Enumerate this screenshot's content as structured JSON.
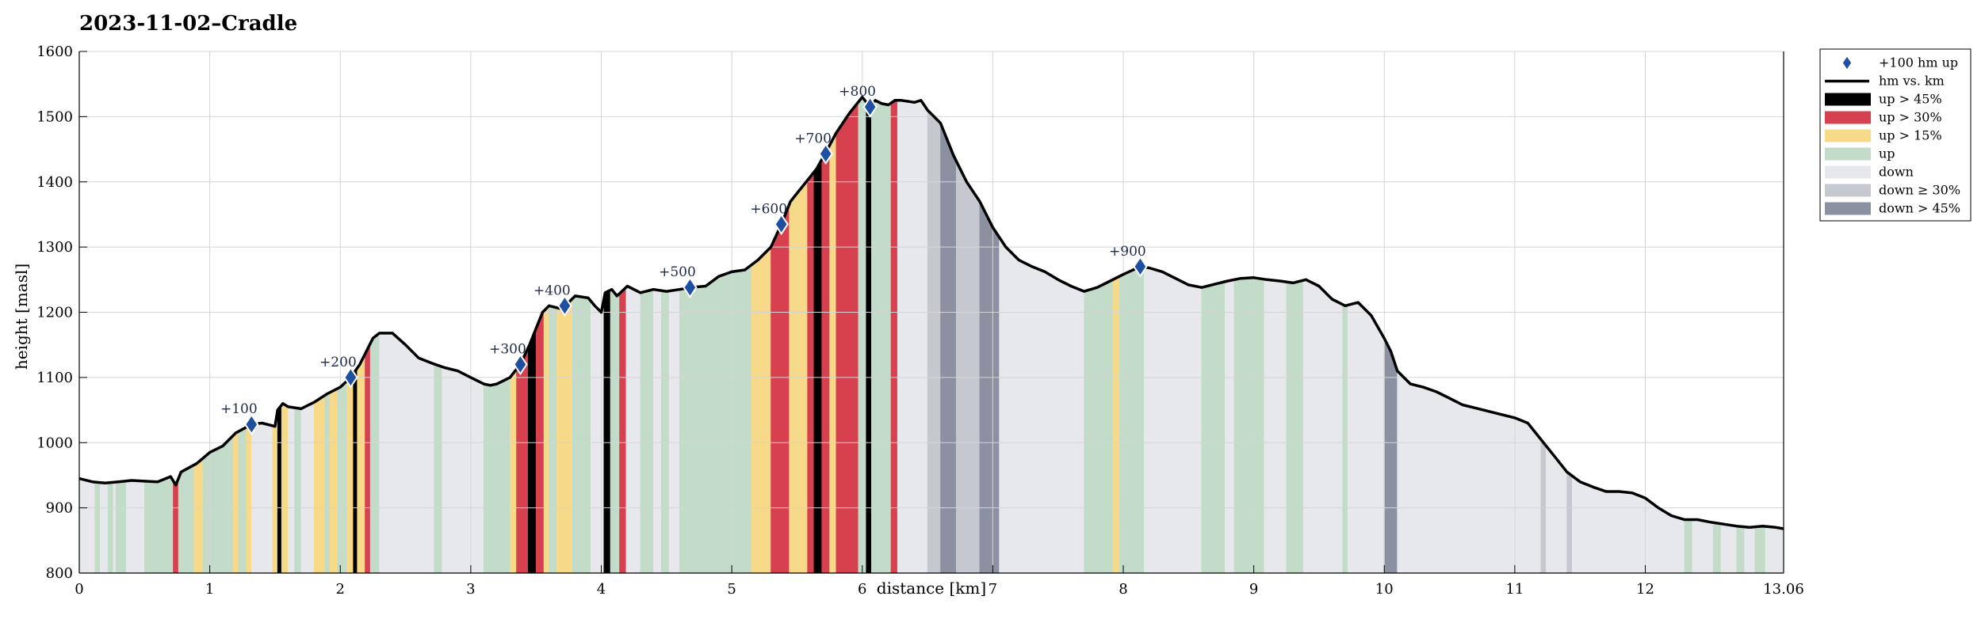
{
  "chart_data": {
    "type": "area",
    "title": "2023-11-02–Cradle",
    "xlabel": "distance [km]",
    "ylabel": "height [masl]",
    "xlim": [
      0,
      13.06
    ],
    "ylim": [
      800,
      1600
    ],
    "x_ticks": [
      0,
      1,
      2,
      3,
      4,
      5,
      6,
      7,
      8,
      9,
      10,
      11,
      12,
      13.06
    ],
    "x_tick_labels": [
      "0",
      "1",
      "2",
      "3",
      "4",
      "5",
      "6",
      "7",
      "8",
      "9",
      "10",
      "11",
      "12",
      "13.06"
    ],
    "y_ticks": [
      800,
      900,
      1000,
      1100,
      1200,
      1300,
      1400,
      1500,
      1600
    ],
    "y_tick_labels": [
      "800",
      "900",
      "1000",
      "1100",
      "1200",
      "1300",
      "1400",
      "1500",
      "1600"
    ],
    "grid": true,
    "legend_position": "outside-top-right",
    "legend": [
      {
        "label": "+100 hm up",
        "kind": "marker",
        "color": "#1f4fa0"
      },
      {
        "label": "hm vs. km",
        "kind": "line",
        "color": "#000000"
      },
      {
        "label": "up > 45%",
        "kind": "patch",
        "color": "#000000"
      },
      {
        "label": "up > 30%",
        "kind": "patch",
        "color": "#d6404f"
      },
      {
        "label": "up > 15%",
        "kind": "patch",
        "color": "#f7d98a"
      },
      {
        "label": "up",
        "kind": "patch",
        "color": "#c3dcc9"
      },
      {
        "label": "down",
        "kind": "patch",
        "color": "#e7e8ec"
      },
      {
        "label": "down ≥ 30%",
        "kind": "patch",
        "color": "#c6c8cf"
      },
      {
        "label": "down > 45%",
        "kind": "patch",
        "color": "#8b91a0"
      }
    ],
    "profile": {
      "x": [
        0,
        0.1,
        0.2,
        0.3,
        0.4,
        0.5,
        0.6,
        0.7,
        0.74,
        0.78,
        0.9,
        1.0,
        1.1,
        1.2,
        1.32,
        1.4,
        1.5,
        1.52,
        1.56,
        1.6,
        1.7,
        1.8,
        1.9,
        2.0,
        2.08,
        2.15,
        2.2,
        2.25,
        2.3,
        2.4,
        2.5,
        2.6,
        2.7,
        2.8,
        2.9,
        3.0,
        3.1,
        3.15,
        3.2,
        3.3,
        3.38,
        3.45,
        3.55,
        3.6,
        3.7,
        3.75,
        3.8,
        3.9,
        3.95,
        4.0,
        4.03,
        4.08,
        4.12,
        4.2,
        4.3,
        4.4,
        4.5,
        4.6,
        4.68,
        4.8,
        4.9,
        5.0,
        5.1,
        5.2,
        5.3,
        5.38,
        5.45,
        5.55,
        5.65,
        5.72,
        5.8,
        5.9,
        6.0,
        6.06,
        6.1,
        6.15,
        6.2,
        6.25,
        6.3,
        6.4,
        6.45,
        6.5,
        6.6,
        6.7,
        6.8,
        6.9,
        7.0,
        7.1,
        7.2,
        7.3,
        7.4,
        7.5,
        7.6,
        7.7,
        7.8,
        7.9,
        8.0,
        8.13,
        8.2,
        8.3,
        8.4,
        8.5,
        8.6,
        8.7,
        8.8,
        8.9,
        9.0,
        9.1,
        9.2,
        9.3,
        9.4,
        9.5,
        9.6,
        9.7,
        9.8,
        9.9,
        10.0,
        10.05,
        10.1,
        10.2,
        10.3,
        10.4,
        10.5,
        10.6,
        10.7,
        10.8,
        10.9,
        11.0,
        11.1,
        11.2,
        11.3,
        11.4,
        11.5,
        11.6,
        11.7,
        11.8,
        11.9,
        12.0,
        12.1,
        12.2,
        12.3,
        12.4,
        12.5,
        12.6,
        12.7,
        12.8,
        12.9,
        13.0,
        13.06
      ],
      "y": [
        945,
        940,
        938,
        940,
        942,
        941,
        940,
        948,
        935,
        955,
        968,
        985,
        995,
        1015,
        1028,
        1030,
        1025,
        1050,
        1060,
        1055,
        1052,
        1062,
        1075,
        1085,
        1100,
        1120,
        1140,
        1160,
        1168,
        1168,
        1150,
        1130,
        1122,
        1115,
        1110,
        1100,
        1090,
        1088,
        1090,
        1100,
        1120,
        1150,
        1200,
        1210,
        1205,
        1215,
        1225,
        1222,
        1210,
        1200,
        1230,
        1235,
        1225,
        1240,
        1230,
        1235,
        1232,
        1235,
        1238,
        1240,
        1255,
        1262,
        1265,
        1280,
        1300,
        1335,
        1370,
        1395,
        1420,
        1445,
        1475,
        1505,
        1530,
        1515,
        1525,
        1520,
        1518,
        1525,
        1525,
        1522,
        1525,
        1510,
        1490,
        1440,
        1400,
        1370,
        1330,
        1300,
        1280,
        1270,
        1262,
        1250,
        1240,
        1232,
        1238,
        1248,
        1258,
        1270,
        1268,
        1262,
        1252,
        1242,
        1238,
        1243,
        1248,
        1252,
        1253,
        1250,
        1248,
        1245,
        1250,
        1240,
        1220,
        1210,
        1215,
        1195,
        1160,
        1140,
        1110,
        1090,
        1085,
        1078,
        1068,
        1058,
        1053,
        1048,
        1043,
        1038,
        1030,
        1005,
        980,
        955,
        940,
        932,
        925,
        925,
        923,
        915,
        900,
        888,
        882,
        882,
        878,
        875,
        872,
        870,
        872,
        870,
        868
      ]
    },
    "segments": [
      {
        "x0": 0.0,
        "x1": 0.12,
        "cat": "down"
      },
      {
        "x0": 0.12,
        "x1": 0.16,
        "cat": "up"
      },
      {
        "x0": 0.16,
        "x1": 0.22,
        "cat": "down"
      },
      {
        "x0": 0.22,
        "x1": 0.26,
        "cat": "up"
      },
      {
        "x0": 0.26,
        "x1": 0.28,
        "cat": "down"
      },
      {
        "x0": 0.28,
        "x1": 0.36,
        "cat": "up"
      },
      {
        "x0": 0.36,
        "x1": 0.5,
        "cat": "down"
      },
      {
        "x0": 0.5,
        "x1": 0.72,
        "cat": "up"
      },
      {
        "x0": 0.72,
        "x1": 0.76,
        "cat": "up30"
      },
      {
        "x0": 0.76,
        "x1": 0.88,
        "cat": "up"
      },
      {
        "x0": 0.88,
        "x1": 0.95,
        "cat": "up15"
      },
      {
        "x0": 0.95,
        "x1": 1.18,
        "cat": "up"
      },
      {
        "x0": 1.18,
        "x1": 1.22,
        "cat": "up15"
      },
      {
        "x0": 1.22,
        "x1": 1.28,
        "cat": "up"
      },
      {
        "x0": 1.28,
        "x1": 1.32,
        "cat": "up15"
      },
      {
        "x0": 1.32,
        "x1": 1.48,
        "cat": "down"
      },
      {
        "x0": 1.48,
        "x1": 1.52,
        "cat": "up15"
      },
      {
        "x0": 1.52,
        "x1": 1.55,
        "cat": "up45"
      },
      {
        "x0": 1.55,
        "x1": 1.6,
        "cat": "up15"
      },
      {
        "x0": 1.6,
        "x1": 1.65,
        "cat": "down"
      },
      {
        "x0": 1.65,
        "x1": 1.7,
        "cat": "up"
      },
      {
        "x0": 1.7,
        "x1": 1.8,
        "cat": "down"
      },
      {
        "x0": 1.8,
        "x1": 1.88,
        "cat": "up15"
      },
      {
        "x0": 1.88,
        "x1": 1.92,
        "cat": "up"
      },
      {
        "x0": 1.92,
        "x1": 1.98,
        "cat": "up15"
      },
      {
        "x0": 1.98,
        "x1": 2.05,
        "cat": "up"
      },
      {
        "x0": 2.05,
        "x1": 2.1,
        "cat": "up15"
      },
      {
        "x0": 2.1,
        "x1": 2.13,
        "cat": "up45"
      },
      {
        "x0": 2.13,
        "x1": 2.19,
        "cat": "up15"
      },
      {
        "x0": 2.19,
        "x1": 2.23,
        "cat": "up30"
      },
      {
        "x0": 2.23,
        "x1": 2.3,
        "cat": "up"
      },
      {
        "x0": 2.3,
        "x1": 2.72,
        "cat": "down"
      },
      {
        "x0": 2.72,
        "x1": 2.78,
        "cat": "up"
      },
      {
        "x0": 2.78,
        "x1": 3.1,
        "cat": "down"
      },
      {
        "x0": 3.1,
        "x1": 3.3,
        "cat": "up"
      },
      {
        "x0": 3.3,
        "x1": 3.35,
        "cat": "up15"
      },
      {
        "x0": 3.35,
        "x1": 3.44,
        "cat": "up30"
      },
      {
        "x0": 3.44,
        "x1": 3.5,
        "cat": "up45"
      },
      {
        "x0": 3.5,
        "x1": 3.56,
        "cat": "up30"
      },
      {
        "x0": 3.56,
        "x1": 3.6,
        "cat": "up15"
      },
      {
        "x0": 3.6,
        "x1": 3.66,
        "cat": "up"
      },
      {
        "x0": 3.66,
        "x1": 3.78,
        "cat": "up15"
      },
      {
        "x0": 3.78,
        "x1": 3.92,
        "cat": "up"
      },
      {
        "x0": 3.92,
        "x1": 4.02,
        "cat": "down"
      },
      {
        "x0": 4.02,
        "x1": 4.07,
        "cat": "up45"
      },
      {
        "x0": 4.07,
        "x1": 4.14,
        "cat": "up"
      },
      {
        "x0": 4.14,
        "x1": 4.19,
        "cat": "up30"
      },
      {
        "x0": 4.19,
        "x1": 4.3,
        "cat": "down"
      },
      {
        "x0": 4.3,
        "x1": 4.4,
        "cat": "up"
      },
      {
        "x0": 4.4,
        "x1": 4.46,
        "cat": "down"
      },
      {
        "x0": 4.46,
        "x1": 4.52,
        "cat": "up"
      },
      {
        "x0": 4.52,
        "x1": 4.6,
        "cat": "down"
      },
      {
        "x0": 4.6,
        "x1": 5.15,
        "cat": "up"
      },
      {
        "x0": 5.15,
        "x1": 5.3,
        "cat": "up15"
      },
      {
        "x0": 5.3,
        "x1": 5.44,
        "cat": "up30"
      },
      {
        "x0": 5.44,
        "x1": 5.58,
        "cat": "up15"
      },
      {
        "x0": 5.58,
        "x1": 5.63,
        "cat": "up30"
      },
      {
        "x0": 5.63,
        "x1": 5.69,
        "cat": "up45"
      },
      {
        "x0": 5.69,
        "x1": 5.75,
        "cat": "up30"
      },
      {
        "x0": 5.75,
        "x1": 5.8,
        "cat": "up15"
      },
      {
        "x0": 5.8,
        "x1": 5.9,
        "cat": "up30"
      },
      {
        "x0": 5.9,
        "x1": 5.97,
        "cat": "up30"
      },
      {
        "x0": 5.97,
        "x1": 6.03,
        "cat": "up"
      },
      {
        "x0": 6.03,
        "x1": 6.07,
        "cat": "up45"
      },
      {
        "x0": 6.07,
        "x1": 6.22,
        "cat": "up"
      },
      {
        "x0": 6.22,
        "x1": 6.27,
        "cat": "up30"
      },
      {
        "x0": 6.27,
        "x1": 6.5,
        "cat": "down"
      },
      {
        "x0": 6.5,
        "x1": 6.6,
        "cat": "down30"
      },
      {
        "x0": 6.6,
        "x1": 6.72,
        "cat": "down45"
      },
      {
        "x0": 6.72,
        "x1": 6.9,
        "cat": "down30"
      },
      {
        "x0": 6.9,
        "x1": 7.05,
        "cat": "down45"
      },
      {
        "x0": 7.05,
        "x1": 7.7,
        "cat": "down"
      },
      {
        "x0": 7.7,
        "x1": 7.92,
        "cat": "up"
      },
      {
        "x0": 7.92,
        "x1": 7.97,
        "cat": "up15"
      },
      {
        "x0": 7.97,
        "x1": 8.16,
        "cat": "up"
      },
      {
        "x0": 8.16,
        "x1": 8.6,
        "cat": "down"
      },
      {
        "x0": 8.6,
        "x1": 8.78,
        "cat": "up"
      },
      {
        "x0": 8.78,
        "x1": 8.85,
        "cat": "down"
      },
      {
        "x0": 8.85,
        "x1": 9.08,
        "cat": "up"
      },
      {
        "x0": 9.08,
        "x1": 9.25,
        "cat": "down"
      },
      {
        "x0": 9.25,
        "x1": 9.38,
        "cat": "up"
      },
      {
        "x0": 9.38,
        "x1": 9.68,
        "cat": "down"
      },
      {
        "x0": 9.68,
        "x1": 9.72,
        "cat": "up"
      },
      {
        "x0": 9.72,
        "x1": 10.0,
        "cat": "down"
      },
      {
        "x0": 10.0,
        "x1": 10.1,
        "cat": "down45"
      },
      {
        "x0": 10.1,
        "x1": 11.2,
        "cat": "down"
      },
      {
        "x0": 11.2,
        "x1": 11.24,
        "cat": "down30"
      },
      {
        "x0": 11.24,
        "x1": 11.4,
        "cat": "down"
      },
      {
        "x0": 11.4,
        "x1": 11.44,
        "cat": "down30"
      },
      {
        "x0": 11.44,
        "x1": 12.3,
        "cat": "down"
      },
      {
        "x0": 12.3,
        "x1": 12.36,
        "cat": "up"
      },
      {
        "x0": 12.36,
        "x1": 12.52,
        "cat": "down"
      },
      {
        "x0": 12.52,
        "x1": 12.58,
        "cat": "up"
      },
      {
        "x0": 12.58,
        "x1": 12.7,
        "cat": "down"
      },
      {
        "x0": 12.7,
        "x1": 12.76,
        "cat": "up"
      },
      {
        "x0": 12.76,
        "x1": 12.84,
        "cat": "down"
      },
      {
        "x0": 12.84,
        "x1": 12.92,
        "cat": "up"
      },
      {
        "x0": 12.92,
        "x1": 13.06,
        "cat": "down"
      }
    ],
    "markers": [
      {
        "x": 1.32,
        "y": 1028,
        "label": "+100"
      },
      {
        "x": 2.08,
        "y": 1100,
        "label": "+200"
      },
      {
        "x": 3.38,
        "y": 1120,
        "label": "+300"
      },
      {
        "x": 3.72,
        "y": 1210,
        "label": "+400"
      },
      {
        "x": 4.68,
        "y": 1238,
        "label": "+500"
      },
      {
        "x": 5.38,
        "y": 1335,
        "label": "+600"
      },
      {
        "x": 5.72,
        "y": 1443,
        "label": "+700"
      },
      {
        "x": 6.06,
        "y": 1515,
        "label": "+800"
      },
      {
        "x": 8.13,
        "y": 1270,
        "label": "+900"
      }
    ],
    "category_colors": {
      "up45": "#000000",
      "up30": "#d6404f",
      "up15": "#f7d98a",
      "up": "#c3dcc9",
      "down": "#e7e8ec",
      "down30": "#c6c8cf",
      "down45": "#8b91a0"
    }
  }
}
